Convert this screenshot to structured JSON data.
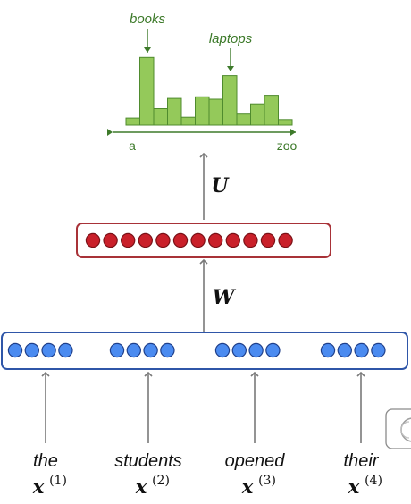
{
  "histogram": {
    "bars": [
      0.09,
      0.86,
      0.21,
      0.34,
      0.1,
      0.36,
      0.33,
      0.63,
      0.14,
      0.27,
      0.38,
      0.07
    ],
    "labels": {
      "peak1": "books",
      "peak2": "laptops"
    },
    "axis_start": "a",
    "axis_end": "zoo",
    "colors": {
      "fill": "#94c95a",
      "stroke": "#4f8b2e",
      "axis": "#3d7a2a"
    }
  },
  "matrices": {
    "upper": "U",
    "lower": "W"
  },
  "hidden_layer": {
    "units": 12,
    "fill": "#c9202a",
    "border": "#a83238"
  },
  "input_layer": {
    "groups": 4,
    "units_per_group": 4,
    "fill": "#4b8bf0",
    "border": "#2f56a8"
  },
  "words": [
    {
      "text": "the",
      "symbol": "x",
      "index": "(1)"
    },
    {
      "text": "students",
      "symbol": "x",
      "index": "(2)"
    },
    {
      "text": "opened",
      "symbol": "x",
      "index": "(3)"
    },
    {
      "text": "their",
      "symbol": "x",
      "index": "(4)"
    }
  ]
}
